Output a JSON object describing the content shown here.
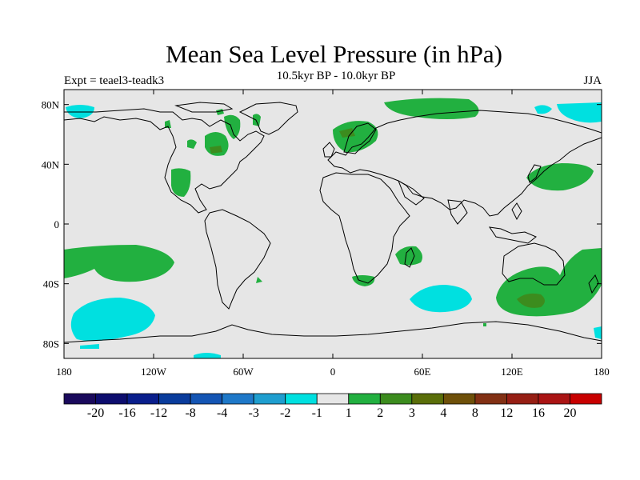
{
  "title": "Mean Sea Level Pressure (in hPa)",
  "experiment": "Expt = teael3-teadk3",
  "period": "10.5kyr BP - 10.0kyr BP",
  "season": "JJA",
  "map": {
    "lon_range": [
      -180,
      180
    ],
    "lat_range": [
      -90,
      90
    ],
    "x_ticks": [
      {
        "value": -180,
        "label": "180"
      },
      {
        "value": -120,
        "label": "120W"
      },
      {
        "value": -60,
        "label": "60W"
      },
      {
        "value": 0,
        "label": "0"
      },
      {
        "value": 60,
        "label": "60E"
      },
      {
        "value": 120,
        "label": "120E"
      },
      {
        "value": 180,
        "label": "180"
      }
    ],
    "y_ticks": [
      {
        "value": 80,
        "label": "80N"
      },
      {
        "value": 40,
        "label": "40N"
      },
      {
        "value": 0,
        "label": "0"
      },
      {
        "value": -40,
        "label": "40S"
      },
      {
        "value": -80,
        "label": "80S"
      }
    ],
    "background_color": "#e6e6e6"
  },
  "colorbar": {
    "labels": [
      "-20",
      "-16",
      "-12",
      "-8",
      "-4",
      "-3",
      "-2",
      "-1",
      "1",
      "2",
      "3",
      "4",
      "8",
      "12",
      "16",
      "20"
    ],
    "colors": [
      "#1a0a5c",
      "#0d0d6e",
      "#0a1e8c",
      "#0a3c9c",
      "#1455b4",
      "#1e78c8",
      "#1e9ecf",
      "#00e0e0",
      "#e6e6e6",
      "#22b040",
      "#3c8c1e",
      "#5a6e0a",
      "#6e500a",
      "#823014",
      "#961e14",
      "#aa1414",
      "#c80000"
    ]
  }
}
